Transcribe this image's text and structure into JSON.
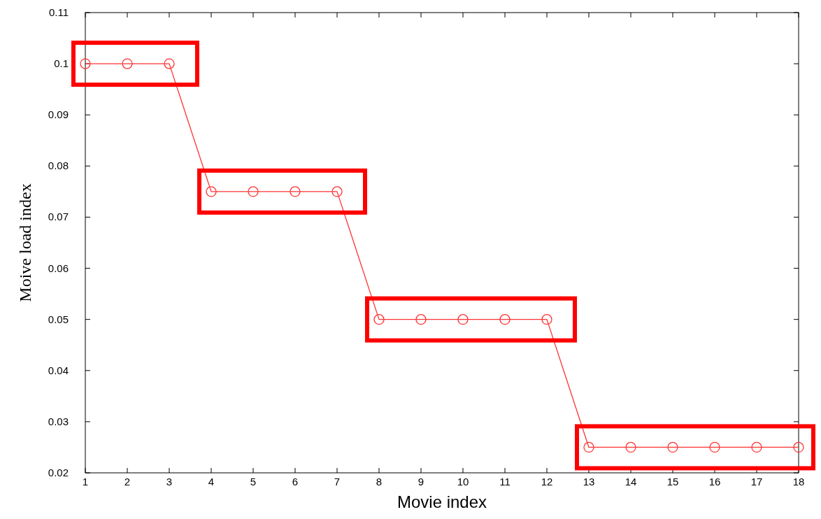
{
  "chart_data": {
    "type": "line",
    "xlabel": "Movie index",
    "ylabel": "Moive load index",
    "x": [
      1,
      2,
      3,
      4,
      5,
      6,
      7,
      8,
      9,
      10,
      11,
      12,
      13,
      14,
      15,
      16,
      17,
      18
    ],
    "series": [
      {
        "color": "#ff3333",
        "values": [
          0.1,
          0.1,
          0.1,
          0.075,
          0.075,
          0.075,
          0.075,
          0.05,
          0.05,
          0.05,
          0.05,
          0.05,
          0.025,
          0.025,
          0.025,
          0.025,
          0.025,
          0.025
        ]
      }
    ],
    "xlim": [
      1,
      18
    ],
    "xticks": [
      1,
      2,
      3,
      4,
      5,
      6,
      7,
      8,
      9,
      10,
      11,
      12,
      13,
      14,
      15,
      16,
      17,
      18
    ],
    "ylim": [
      0.02,
      0.11
    ],
    "yticks": [
      0.02,
      0.03,
      0.04,
      0.05,
      0.06,
      0.07,
      0.08,
      0.09,
      0.1,
      0.11
    ],
    "marker": "circle",
    "line_style": "solid"
  }
}
